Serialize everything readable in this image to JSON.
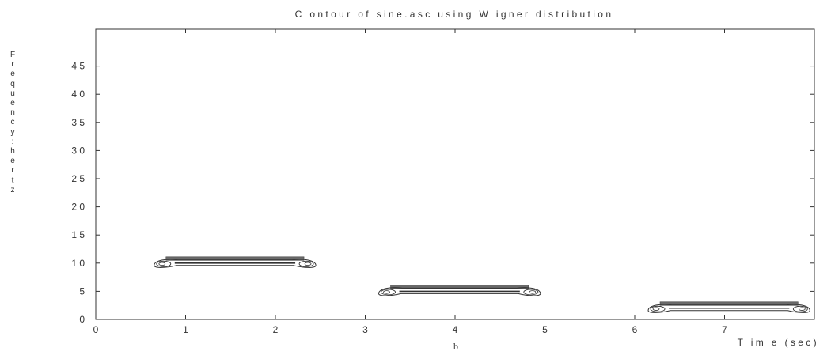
{
  "chart_data": {
    "type": "contour",
    "title": "C ontour of sine.asc using W igner distribution",
    "xlabel": "T im e (sec)",
    "ylabel": "Frequency:hertz",
    "sub_label": "b",
    "xlim": [
      0,
      8
    ],
    "ylim": [
      0,
      50
    ],
    "xticks": [
      0,
      1,
      2,
      3,
      4,
      5,
      6,
      7
    ],
    "yticks": [
      0,
      5,
      10,
      15,
      20,
      25,
      30,
      35,
      40,
      45
    ],
    "xtick_labels": [
      "0",
      "1",
      "2",
      "3",
      "4",
      "5",
      "6",
      "7"
    ],
    "ytick_labels": [
      "0",
      "5",
      "1 0",
      "1 5",
      "2 0",
      "2 5",
      "3 0",
      "3 5",
      "4 0",
      "4 5"
    ],
    "grid": false,
    "features": [
      {
        "t_start": 0.65,
        "t_end": 2.45,
        "frequency": 10
      },
      {
        "t_start": 3.15,
        "t_end": 4.95,
        "frequency": 5
      },
      {
        "t_start": 6.15,
        "t_end": 7.95,
        "frequency": 2
      }
    ],
    "colors": {
      "contour": "#333333",
      "fill": "#6a6a6a",
      "axes": "#333333"
    }
  }
}
